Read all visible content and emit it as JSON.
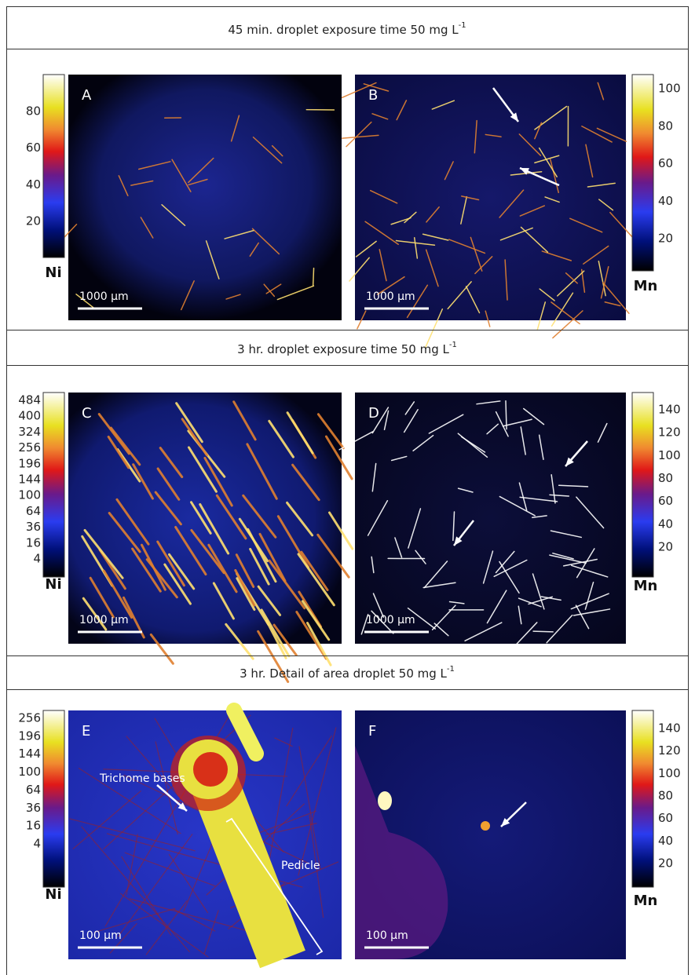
{
  "sections": [
    {
      "title": {
        "text": "45 min. droplet exposure time 50 mg L",
        "superscript": "-1"
      },
      "panels": [
        {
          "letter": "A",
          "scale_bar": "1000 µm",
          "colorbar": {
            "element": "Ni",
            "ticks": [
              80,
              60,
              40,
              20
            ]
          }
        },
        {
          "letter": "B",
          "scale_bar": "1000 µm",
          "colorbar": {
            "element": "Mn",
            "ticks": [
              100,
              80,
              60,
              40,
              20
            ]
          }
        }
      ]
    },
    {
      "title": {
        "text": "3 hr. droplet exposure time 50 mg L",
        "superscript": "-1"
      },
      "panels": [
        {
          "letter": "C",
          "scale_bar": "1000 µm",
          "colorbar": {
            "element": "Ni",
            "ticks": [
              484,
              400,
              324,
              256,
              196,
              144,
              100,
              64,
              36,
              16,
              4
            ]
          }
        },
        {
          "letter": "D",
          "scale_bar": "1000 µm",
          "colorbar": {
            "element": "Mn",
            "ticks": [
              140,
              120,
              100,
              80,
              60,
              40,
              20
            ]
          }
        }
      ]
    },
    {
      "title": {
        "text": "3 hr. Detail of area droplet 50 mg L",
        "superscript": "-1"
      },
      "panels": [
        {
          "letter": "E",
          "scale_bar": "100 µm",
          "annotations": [
            "Trichome bases",
            "Pedicle"
          ],
          "colorbar": {
            "element": "Ni",
            "ticks": [
              256,
              196,
              144,
              100,
              64,
              36,
              16,
              4
            ]
          }
        },
        {
          "letter": "F",
          "scale_bar": "100 µm",
          "colorbar": {
            "element": "Mn",
            "ticks": [
              140,
              120,
              100,
              80,
              60,
              40,
              20
            ]
          }
        }
      ]
    }
  ]
}
